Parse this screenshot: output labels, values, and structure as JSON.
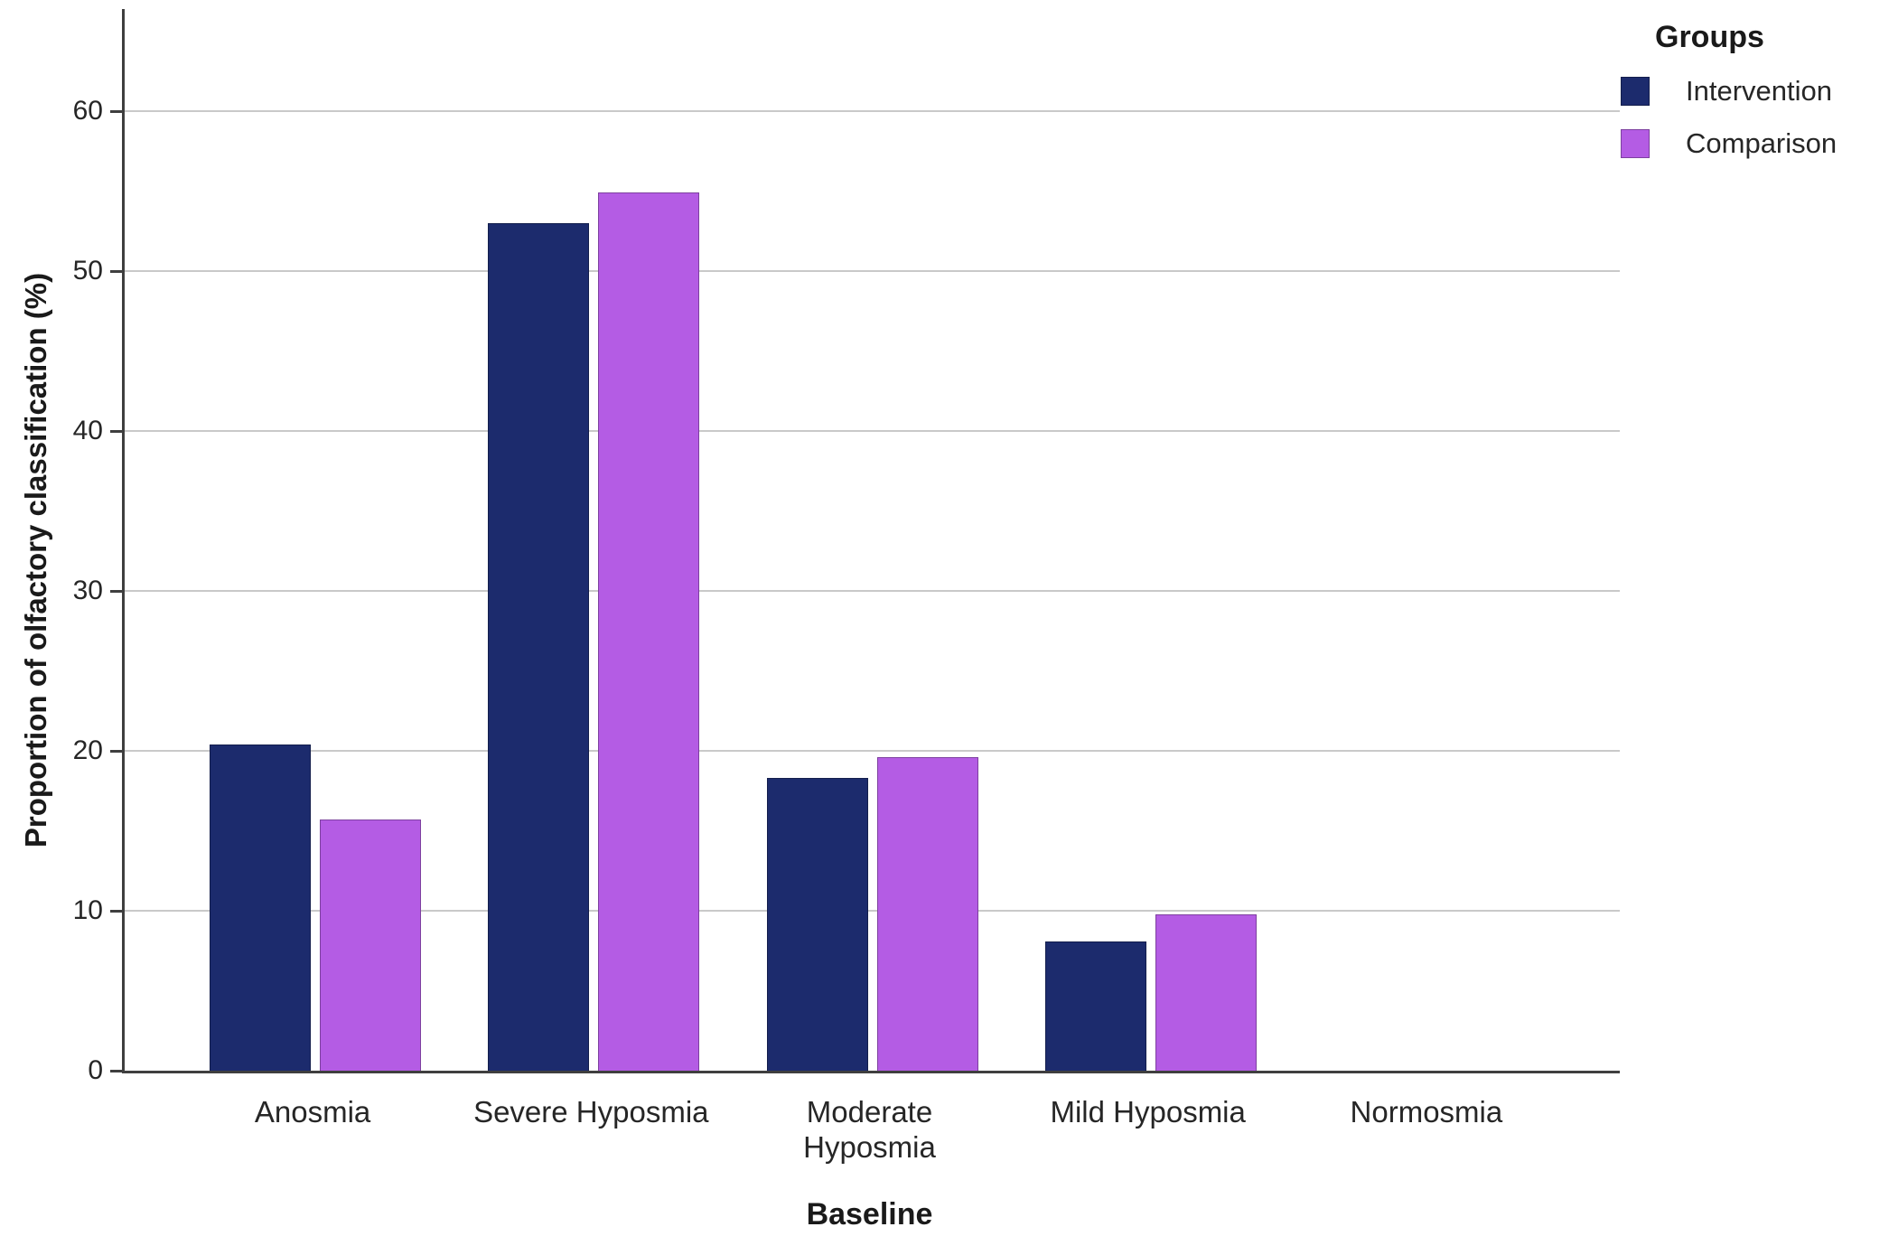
{
  "chart_data": {
    "type": "bar",
    "title": "",
    "xlabel": "Baseline",
    "ylabel": "Proportion of olfactory classification (%)",
    "categories": [
      "Anosmia",
      "Severe Hyposmia",
      "Moderate Hyposmia",
      "Mild Hyposmia",
      "Normosmia"
    ],
    "series": [
      {
        "name": "Intervention",
        "color": "#1c2b6d",
        "values": [
          20.4,
          53.0,
          18.3,
          8.1,
          0
        ]
      },
      {
        "name": "Comparison",
        "color": "#b45ce4",
        "values": [
          15.7,
          54.9,
          19.6,
          9.8,
          0
        ]
      }
    ],
    "ylim": [
      0,
      60
    ],
    "yticks": [
      0,
      10,
      20,
      30,
      40,
      50,
      60
    ],
    "grid": true,
    "legend_title": "Groups",
    "legend_position": "top-right"
  }
}
